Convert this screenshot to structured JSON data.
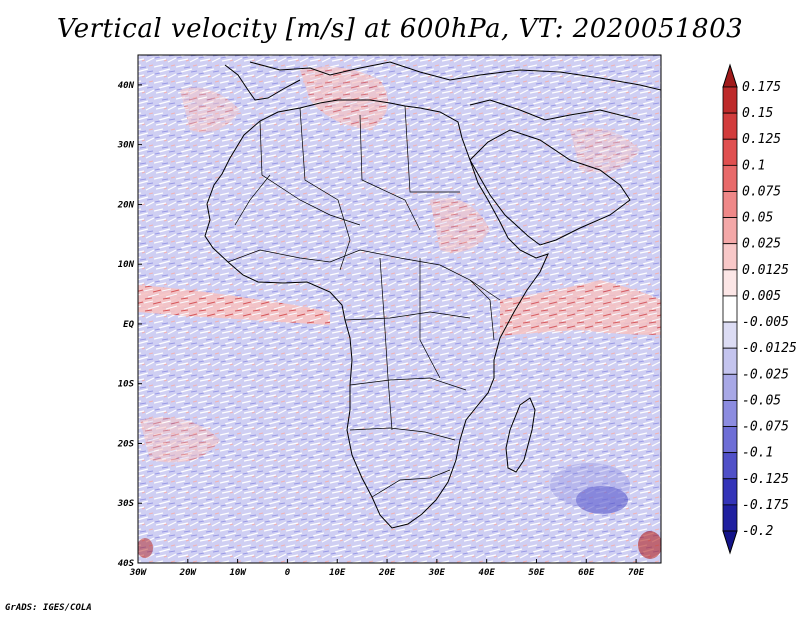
{
  "title": "Vertical velocity [m/s] at 600hPa, VT: 2020051803",
  "credit": "GrADS: IGES/COLA",
  "map": {
    "lon_range": [
      -30,
      75
    ],
    "lat_range": [
      -40,
      45
    ],
    "lat_ticks": [
      {
        "lat": 40,
        "label": "40N"
      },
      {
        "lat": 30,
        "label": "30N"
      },
      {
        "lat": 20,
        "label": "20N"
      },
      {
        "lat": 10,
        "label": "10N"
      },
      {
        "lat": 0,
        "label": "EQ"
      },
      {
        "lat": -10,
        "label": "10S"
      },
      {
        "lat": -20,
        "label": "20S"
      },
      {
        "lat": -30,
        "label": "30S"
      },
      {
        "lat": -40,
        "label": "40S"
      }
    ],
    "lon_ticks": [
      {
        "lon": -30,
        "label": "30W"
      },
      {
        "lon": -20,
        "label": "20W"
      },
      {
        "lon": -10,
        "label": "10W"
      },
      {
        "lon": 0,
        "label": "0"
      },
      {
        "lon": 10,
        "label": "10E"
      },
      {
        "lon": 20,
        "label": "20E"
      },
      {
        "lon": 30,
        "label": "30E"
      },
      {
        "lon": 40,
        "label": "40E"
      },
      {
        "lon": 50,
        "label": "50E"
      },
      {
        "lon": 60,
        "label": "60E"
      },
      {
        "lon": 70,
        "label": "70E"
      }
    ]
  },
  "colorbar": {
    "labels": [
      "0.175",
      "0.15",
      "0.125",
      "0.1",
      "0.075",
      "0.05",
      "0.025",
      "0.0125",
      "0.005",
      "-0.005",
      "-0.0125",
      "-0.025",
      "-0.05",
      "-0.075",
      "-0.1",
      "-0.125",
      "-0.175",
      "-0.2"
    ],
    "colors": [
      "#a01a1a",
      "#be2a2a",
      "#d23c3c",
      "#e05050",
      "#e86a6a",
      "#ef8888",
      "#f4a8a8",
      "#f8c8c8",
      "#fce6e6",
      "#ffffff",
      "#dcdcf4",
      "#c4c4ee",
      "#a8a8e6",
      "#8c8ce0",
      "#6e6ed6",
      "#5050c8",
      "#3434b8",
      "#2020a0",
      "#14148a"
    ]
  }
}
